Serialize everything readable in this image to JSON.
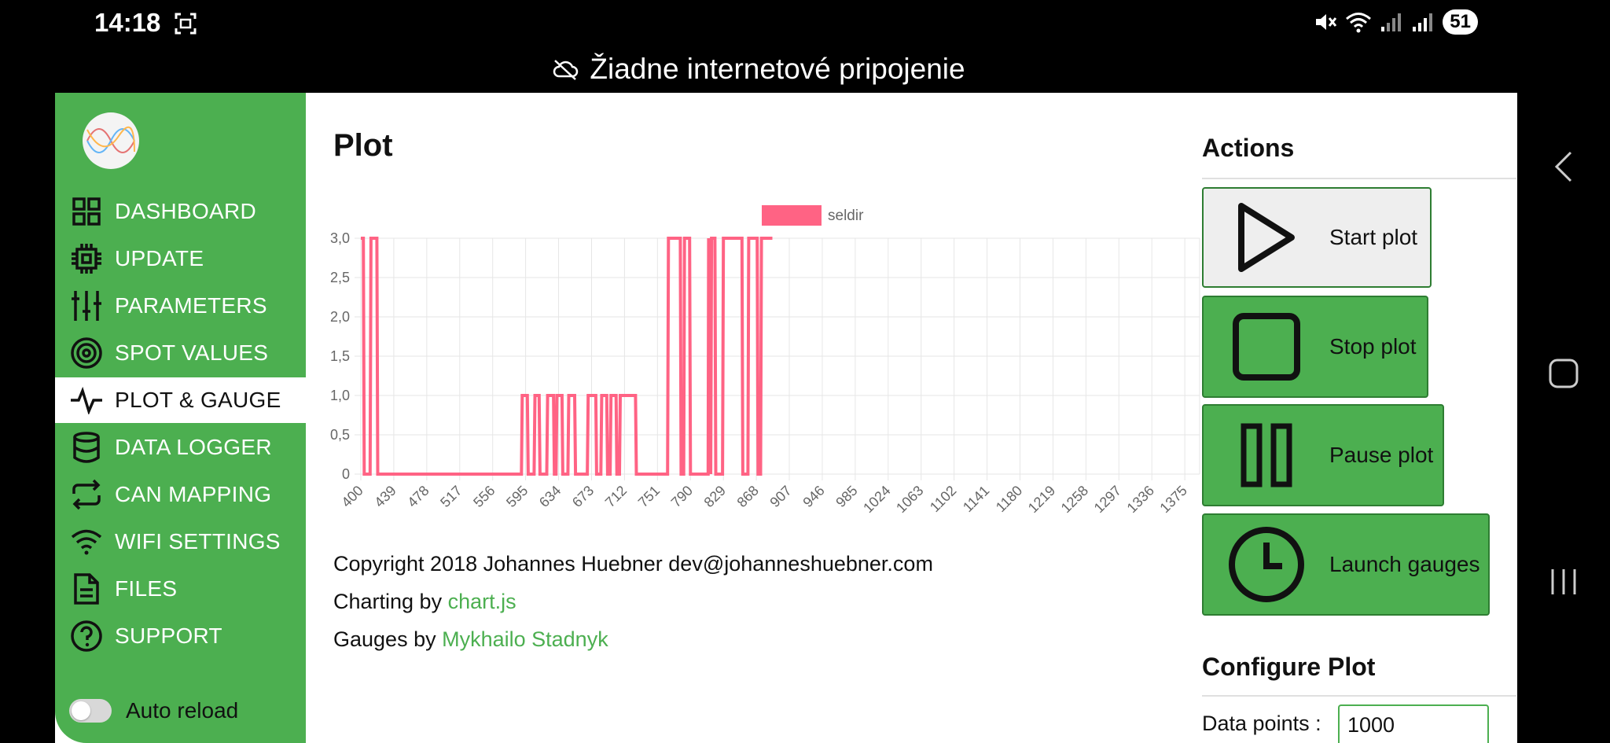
{
  "status": {
    "time": "14:18",
    "battery": "51"
  },
  "network_banner": "Žiadne internetové pripojenie",
  "sidebar": {
    "items": [
      {
        "label": "DASHBOARD",
        "icon": "dashboard-icon"
      },
      {
        "label": "UPDATE",
        "icon": "chip-icon"
      },
      {
        "label": "PARAMETERS",
        "icon": "sliders-icon"
      },
      {
        "label": "SPOT VALUES",
        "icon": "target-icon"
      },
      {
        "label": "PLOT & GAUGE",
        "icon": "pulse-icon",
        "active": true
      },
      {
        "label": "DATA LOGGER",
        "icon": "database-icon"
      },
      {
        "label": "CAN MAPPING",
        "icon": "repeat-icon"
      },
      {
        "label": "WIFI SETTINGS",
        "icon": "wifi-icon"
      },
      {
        "label": "FILES",
        "icon": "file-icon"
      },
      {
        "label": "SUPPORT",
        "icon": "help-icon"
      }
    ],
    "auto_reload_label": "Auto reload",
    "auto_reload_on": false
  },
  "main": {
    "title": "Plot",
    "copyright": "Copyright 2018 Johannes Huebner dev@johanneshuebner.com",
    "charting_prefix": "Charting by ",
    "charting_link": "chart.js",
    "gauges_prefix": "Gauges by ",
    "gauges_link": "Mykhailo Stadnyk"
  },
  "chart_data": {
    "type": "line",
    "series": [
      {
        "name": "seldir",
        "color": "#ff6384",
        "points": [
          [
            400,
            3
          ],
          [
            403,
            3
          ],
          [
            404,
            0
          ],
          [
            411,
            0
          ],
          [
            412,
            3
          ],
          [
            419,
            3
          ],
          [
            420,
            0
          ],
          [
            440,
            0
          ],
          [
            590,
            0
          ],
          [
            591,
            1
          ],
          [
            597,
            1
          ],
          [
            598,
            0
          ],
          [
            605,
            0
          ],
          [
            606,
            1
          ],
          [
            611,
            1
          ],
          [
            612,
            0
          ],
          [
            620,
            0
          ],
          [
            621,
            1
          ],
          [
            628,
            1
          ],
          [
            629,
            0
          ],
          [
            631,
            0
          ],
          [
            632,
            1
          ],
          [
            638,
            1
          ],
          [
            639,
            0
          ],
          [
            645,
            0
          ],
          [
            646,
            1
          ],
          [
            653,
            1
          ],
          [
            654,
            0
          ],
          [
            668,
            0
          ],
          [
            669,
            1
          ],
          [
            678,
            1
          ],
          [
            679,
            0
          ],
          [
            684,
            0
          ],
          [
            685,
            1
          ],
          [
            691,
            1
          ],
          [
            692,
            0
          ],
          [
            695,
            0
          ],
          [
            696,
            1
          ],
          [
            702,
            1
          ],
          [
            703,
            0
          ],
          [
            706,
            0
          ],
          [
            707,
            1
          ],
          [
            725,
            1
          ],
          [
            726,
            0
          ],
          [
            763,
            0
          ],
          [
            764,
            3
          ],
          [
            778,
            3
          ],
          [
            779,
            0
          ],
          [
            782,
            0
          ],
          [
            783,
            3
          ],
          [
            789,
            3
          ],
          [
            790,
            0
          ],
          [
            811,
            0
          ],
          [
            811.5,
            3
          ],
          [
            812,
            0
          ],
          [
            813,
            3
          ],
          [
            814,
            0
          ],
          [
            815,
            3
          ],
          [
            819,
            3
          ],
          [
            820,
            0
          ],
          [
            828,
            0
          ],
          [
            829,
            3
          ],
          [
            851,
            3
          ],
          [
            852,
            0
          ],
          [
            858,
            0
          ],
          [
            859,
            3
          ],
          [
            869,
            3
          ],
          [
            870,
            0
          ],
          [
            873,
            0
          ],
          [
            874,
            3
          ],
          [
            887,
            3
          ]
        ]
      }
    ],
    "x_ticks": [
      "400",
      "439",
      "478",
      "517",
      "556",
      "595",
      "634",
      "673",
      "712",
      "751",
      "790",
      "829",
      "868",
      "907",
      "946",
      "985",
      "1024",
      "1063",
      "1102",
      "1141",
      "1180",
      "1219",
      "1258",
      "1297",
      "1336",
      "1375"
    ],
    "y_ticks": [
      "0",
      "0,5",
      "1,0",
      "1,5",
      "2,0",
      "2,5",
      "3,0"
    ],
    "ylim": [
      0,
      3
    ],
    "grid": true,
    "legend_position": "top"
  },
  "actions": {
    "title": "Actions",
    "start_label": "Start plot",
    "stop_label": "Stop plot",
    "pause_label": "Pause plot",
    "gauges_label": "Launch gauges"
  },
  "configure": {
    "title": "Configure Plot",
    "data_points_label": "Data points :",
    "data_points_value": "1000"
  },
  "colors": {
    "accent": "#4caf50",
    "series": "#ff6384"
  }
}
